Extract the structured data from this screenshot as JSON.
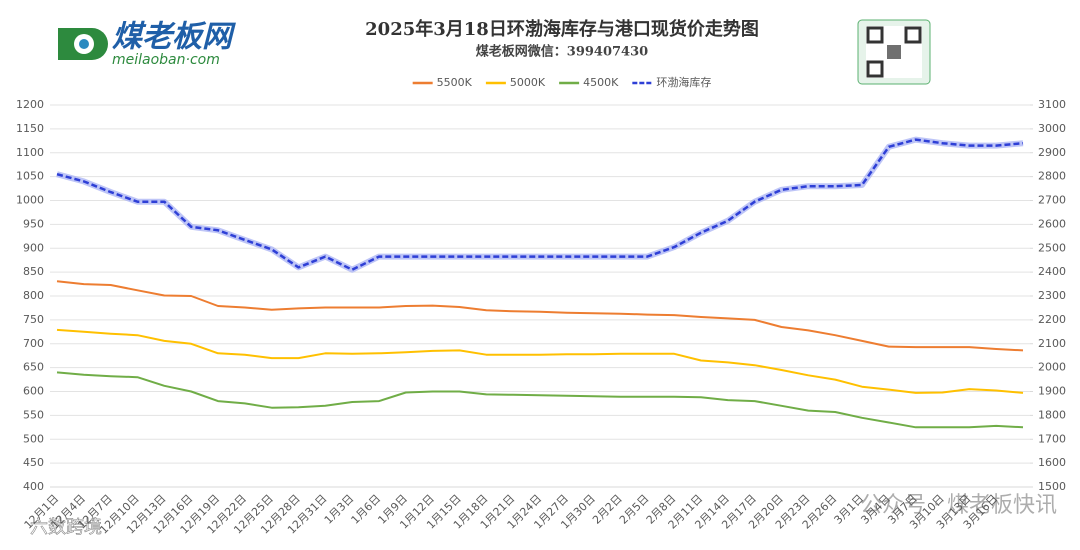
{
  "brand": {
    "name": "煤老板网",
    "url": "meilaoban·com"
  },
  "watermarks": [
    "公众号 · 煤老板快讯",
    "六数跨境"
  ],
  "chart_data": {
    "type": "line",
    "title": "2025年3月18日环渤海库存与港口现货价走势图",
    "subtitle": "煤老板网微信：399407430",
    "categories": [
      "12月1日",
      "12月4日",
      "12月7日",
      "12月10日",
      "12月13日",
      "12月16日",
      "12月19日",
      "12月22日",
      "12月25日",
      "12月28日",
      "12月31日",
      "1月3日",
      "1月6日",
      "1月9日",
      "1月12日",
      "1月15日",
      "1月18日",
      "1月21日",
      "1月24日",
      "1月27日",
      "1月30日",
      "2月2日",
      "2月5日",
      "2月8日",
      "2月11日",
      "2月14日",
      "2月17日",
      "2月20日",
      "2月23日",
      "2月26日",
      "3月1日",
      "3月4日",
      "3月7日",
      "3月10日",
      "3月13日",
      "3月16日",
      null
    ],
    "series": [
      {
        "name": "5500K",
        "color": "#ed7d31",
        "axis": "y",
        "values": [
          831,
          825,
          823,
          812,
          801,
          800,
          779,
          776,
          771,
          774,
          776,
          776,
          776,
          779,
          780,
          777,
          770,
          768,
          767,
          765,
          764,
          763,
          761,
          760,
          756,
          753,
          750,
          735,
          728,
          718,
          706,
          694,
          693,
          693,
          693,
          689,
          686
        ]
      },
      {
        "name": "5000K",
        "color": "#ffc000",
        "axis": "y",
        "values": [
          729,
          725,
          721,
          718,
          706,
          700,
          680,
          677,
          670,
          670,
          680,
          679,
          680,
          682,
          685,
          686,
          677,
          677,
          677,
          678,
          678,
          679,
          679,
          679,
          665,
          661,
          655,
          645,
          634,
          625,
          610,
          604,
          597,
          598,
          605,
          602,
          597
        ]
      },
      {
        "name": "4500K",
        "color": "#70ad47",
        "axis": "y",
        "values": [
          640,
          635,
          632,
          630,
          612,
          600,
          580,
          575,
          566,
          567,
          570,
          578,
          580,
          598,
          600,
          600,
          594,
          593,
          592,
          591,
          590,
          589,
          589,
          589,
          588,
          582,
          580,
          570,
          560,
          557,
          545,
          535,
          525,
          525,
          525,
          528,
          525
        ]
      },
      {
        "name": "环渤海库存",
        "color": "#2e3fd6",
        "axis": "y2",
        "style": "dashed",
        "values": [
          2810,
          2780,
          2735,
          2695,
          2695,
          2590,
          2575,
          2535,
          2495,
          2420,
          2465,
          2410,
          2465,
          2465,
          2465,
          2465,
          2465,
          2465,
          2465,
          2465,
          2465,
          2465,
          2465,
          2505,
          2565,
          2615,
          2695,
          2745,
          2760,
          2760,
          2765,
          2925,
          2955,
          2940,
          2930,
          2930,
          2940
        ]
      }
    ],
    "ylim": [
      400,
      1200
    ],
    "yticks": [
      400,
      450,
      500,
      550,
      600,
      650,
      700,
      750,
      800,
      850,
      900,
      950,
      1000,
      1050,
      1100,
      1150,
      1200
    ],
    "y2lim": [
      1500,
      3100
    ],
    "y2ticks": [
      1500,
      1600,
      1700,
      1800,
      1900,
      2000,
      2100,
      2200,
      2300,
      2400,
      2500,
      2600,
      2700,
      2800,
      2900,
      3000,
      3100
    ],
    "grid": true,
    "legend": "top"
  }
}
